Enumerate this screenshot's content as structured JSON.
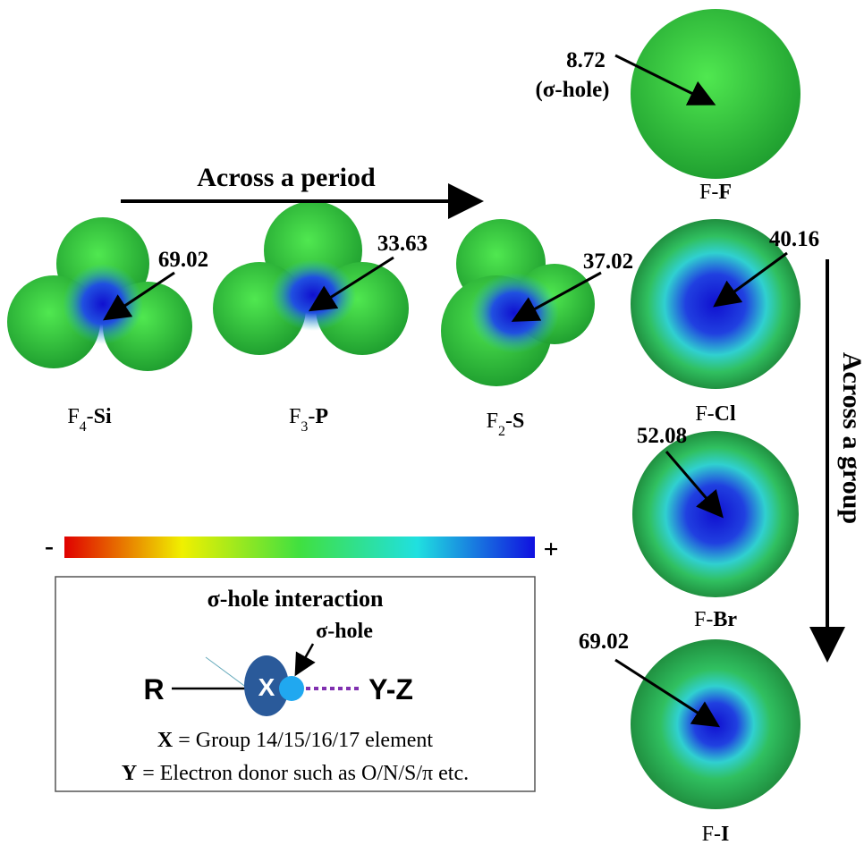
{
  "period_arrow": {
    "label": "Across a period"
  },
  "group_arrow": {
    "label": "Across a group"
  },
  "molecules": [
    {
      "base": "F",
      "sub": "4",
      "sep": "-",
      "atom": "Si",
      "value": "69.02"
    },
    {
      "base": "F",
      "sub": "3",
      "sep": "-",
      "atom": "P",
      "value": "33.63"
    },
    {
      "base": "F",
      "sub": "2",
      "sep": "-",
      "atom": "S",
      "value": "37.02"
    },
    {
      "base": "F",
      "sep": "-",
      "atom": "F",
      "value": "8.72",
      "note": "(σ-hole)"
    },
    {
      "base": "F",
      "sep": "-",
      "atom": "Cl",
      "value": "40.16"
    },
    {
      "base": "F",
      "sep": "-",
      "atom": "Br",
      "value": "52.08"
    },
    {
      "base": "F",
      "sep": "-",
      "atom": "I",
      "value": "69.02"
    }
  ],
  "colorbar": {
    "min_label": "-",
    "max_label": "+"
  },
  "box": {
    "title": "σ-hole interaction",
    "hole_label": "σ-hole",
    "r": "R",
    "x": "X",
    "yz": "Y-Z",
    "line1": {
      "bold": "X",
      "text": " = Group 14/15/16/17 element"
    },
    "line2": {
      "bold": "Y",
      "text": " = Electron donor such as O/N/S/π etc."
    }
  }
}
